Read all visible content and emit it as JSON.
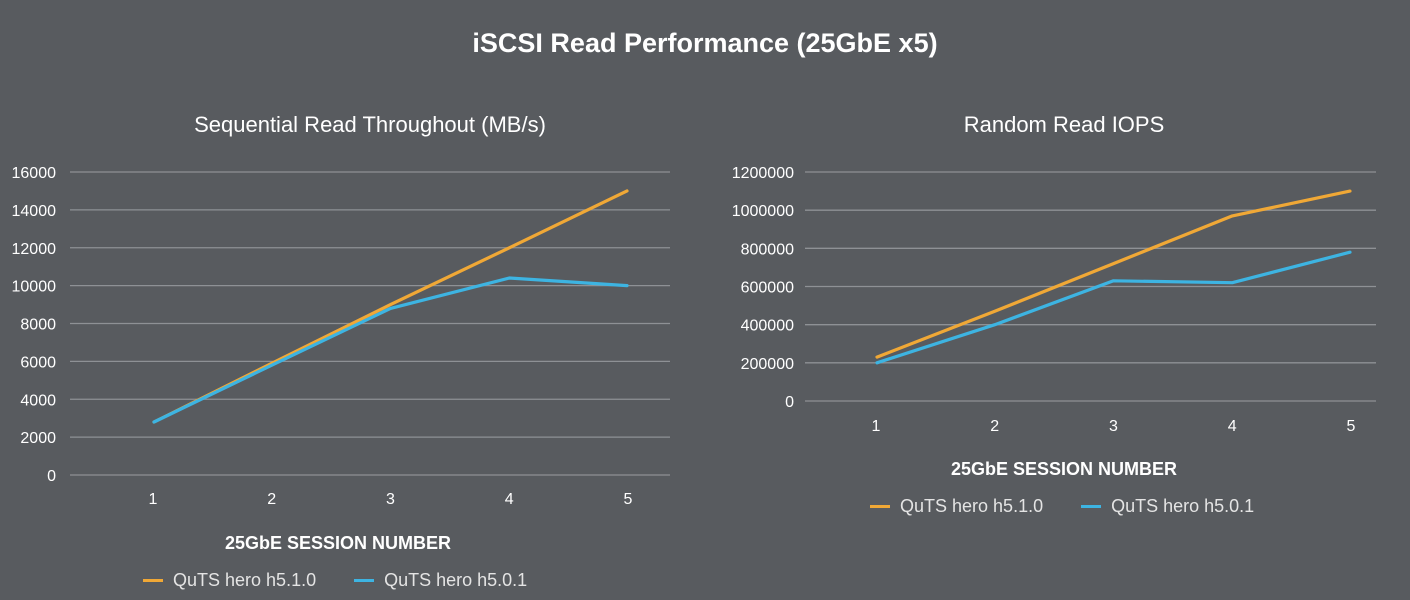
{
  "page_title": "iSCSI Read Performance (25GbE x5)",
  "colors": {
    "background": "#585b5f",
    "grid": "#8e9195",
    "series_1": "#f0a836",
    "series_2": "#3db4e2"
  },
  "chart_data": [
    {
      "type": "line",
      "title": "Sequential Read Throughout (MB/s)",
      "xlabel": "25GbE SESSION NUMBER",
      "ylabel": "",
      "categories": [
        "1",
        "2",
        "3",
        "4",
        "5"
      ],
      "ylim": [
        0,
        16000
      ],
      "yticks": [
        "0",
        "2000",
        "4000",
        "6000",
        "8000",
        "10000",
        "12000",
        "14000",
        "16000"
      ],
      "grid": true,
      "legend_position": "bottom",
      "series": [
        {
          "name": "QuTS hero h5.1.0",
          "values": [
            2800,
            5900,
            9000,
            12000,
            15000
          ]
        },
        {
          "name": "QuTS hero h5.0.1",
          "values": [
            2800,
            5800,
            8800,
            10400,
            10000
          ]
        }
      ]
    },
    {
      "type": "line",
      "title": "Random Read IOPS",
      "xlabel": "25GbE SESSION NUMBER",
      "ylabel": "",
      "categories": [
        "1",
        "2",
        "3",
        "4",
        "5"
      ],
      "ylim": [
        0,
        1200000
      ],
      "yticks": [
        "0",
        "200000",
        "400000",
        "600000",
        "800000",
        "1000000",
        "1200000"
      ],
      "grid": true,
      "legend_position": "bottom",
      "series": [
        {
          "name": "QuTS hero h5.1.0",
          "values": [
            230000,
            470000,
            720000,
            970000,
            1100000
          ]
        },
        {
          "name": "QuTS hero h5.0.1",
          "values": [
            200000,
            400000,
            630000,
            620000,
            780000
          ]
        }
      ]
    }
  ]
}
